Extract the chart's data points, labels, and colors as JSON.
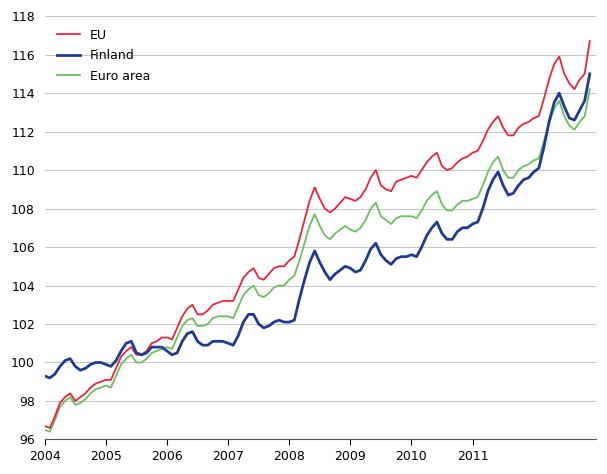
{
  "title": "",
  "ylabel": "",
  "xlabel": "",
  "ylim": [
    96,
    118
  ],
  "yticks": [
    96,
    98,
    100,
    102,
    104,
    106,
    108,
    110,
    112,
    114,
    116,
    118
  ],
  "line_colors": {
    "EU": "#e8253a",
    "Finland": "#1f3a8f",
    "Euro area": "#6abf5e"
  },
  "line_widths": {
    "EU": 1.3,
    "Finland": 2.0,
    "Euro area": 1.3
  },
  "background_color": "#ffffff",
  "grid_color": "#bbbbbb",
  "eu": [
    96.7,
    96.6,
    97.2,
    97.9,
    98.2,
    98.4,
    98.0,
    98.2,
    98.4,
    98.7,
    98.9,
    99.0,
    99.1,
    99.1,
    99.7,
    100.3,
    100.6,
    100.8,
    100.4,
    100.4,
    100.6,
    101.0,
    101.1,
    101.3,
    101.3,
    101.2,
    101.8,
    102.4,
    102.8,
    103.0,
    102.5,
    102.5,
    102.7,
    103.0,
    103.1,
    103.2,
    103.2,
    103.2,
    103.8,
    104.4,
    104.7,
    104.9,
    104.4,
    104.3,
    104.6,
    104.9,
    105.0,
    105.0,
    105.3,
    105.5,
    106.4,
    107.4,
    108.4,
    109.1,
    108.5,
    108.0,
    107.8,
    108.0,
    108.3,
    108.6,
    108.5,
    108.4,
    108.6,
    109.0,
    109.6,
    110.0,
    109.2,
    109.0,
    108.9,
    109.4,
    109.5,
    109.6,
    109.7,
    109.6,
    110.0,
    110.4,
    110.7,
    110.9,
    110.2,
    110.0,
    110.1,
    110.4,
    110.6,
    110.7,
    110.9,
    111.0,
    111.5,
    112.1,
    112.5,
    112.8,
    112.2,
    111.8,
    111.8,
    112.2,
    112.4,
    112.5,
    112.7,
    112.8,
    113.7,
    114.7,
    115.5,
    115.9,
    115.0,
    114.5,
    114.2,
    114.7,
    115.0,
    116.7
  ],
  "finland": [
    99.3,
    99.2,
    99.4,
    99.8,
    100.1,
    100.2,
    99.8,
    99.6,
    99.7,
    99.9,
    100.0,
    100.0,
    99.9,
    99.8,
    100.1,
    100.6,
    101.0,
    101.1,
    100.5,
    100.4,
    100.5,
    100.8,
    100.8,
    100.8,
    100.6,
    100.4,
    100.5,
    101.1,
    101.5,
    101.6,
    101.1,
    100.9,
    100.9,
    101.1,
    101.1,
    101.1,
    101.0,
    100.9,
    101.4,
    102.1,
    102.5,
    102.5,
    102.0,
    101.8,
    101.9,
    102.1,
    102.2,
    102.1,
    102.1,
    102.2,
    103.3,
    104.3,
    105.2,
    105.8,
    105.2,
    104.7,
    104.3,
    104.6,
    104.8,
    105.0,
    104.9,
    104.7,
    104.8,
    105.3,
    105.9,
    106.2,
    105.6,
    105.3,
    105.1,
    105.4,
    105.5,
    105.5,
    105.6,
    105.5,
    106.0,
    106.6,
    107.0,
    107.3,
    106.7,
    106.4,
    106.4,
    106.8,
    107.0,
    107.0,
    107.2,
    107.3,
    108.0,
    108.9,
    109.5,
    109.9,
    109.2,
    108.7,
    108.8,
    109.2,
    109.5,
    109.6,
    109.9,
    110.1,
    111.2,
    112.5,
    113.5,
    114.0,
    113.3,
    112.7,
    112.6,
    113.1,
    113.6,
    115.0
  ],
  "euro_area": [
    96.5,
    96.4,
    97.0,
    97.7,
    98.0,
    98.2,
    97.8,
    97.9,
    98.1,
    98.4,
    98.6,
    98.7,
    98.8,
    98.7,
    99.3,
    99.9,
    100.2,
    100.4,
    100.0,
    100.0,
    100.2,
    100.5,
    100.6,
    100.7,
    100.8,
    100.7,
    101.3,
    101.9,
    102.2,
    102.3,
    101.9,
    101.9,
    102.0,
    102.3,
    102.4,
    102.4,
    102.4,
    102.3,
    102.9,
    103.5,
    103.8,
    104.0,
    103.5,
    103.4,
    103.6,
    103.9,
    104.0,
    104.0,
    104.3,
    104.5,
    105.3,
    106.2,
    107.1,
    107.7,
    107.1,
    106.6,
    106.4,
    106.7,
    106.9,
    107.1,
    106.9,
    106.8,
    107.0,
    107.4,
    108.0,
    108.3,
    107.6,
    107.4,
    107.2,
    107.5,
    107.6,
    107.6,
    107.6,
    107.5,
    107.9,
    108.4,
    108.7,
    108.9,
    108.2,
    107.9,
    107.9,
    108.2,
    108.4,
    108.4,
    108.5,
    108.6,
    109.2,
    109.9,
    110.4,
    110.7,
    110.0,
    109.6,
    109.6,
    110.0,
    110.2,
    110.3,
    110.5,
    110.6,
    111.5,
    112.4,
    113.2,
    113.6,
    112.8,
    112.3,
    112.1,
    112.5,
    112.8,
    114.2
  ]
}
